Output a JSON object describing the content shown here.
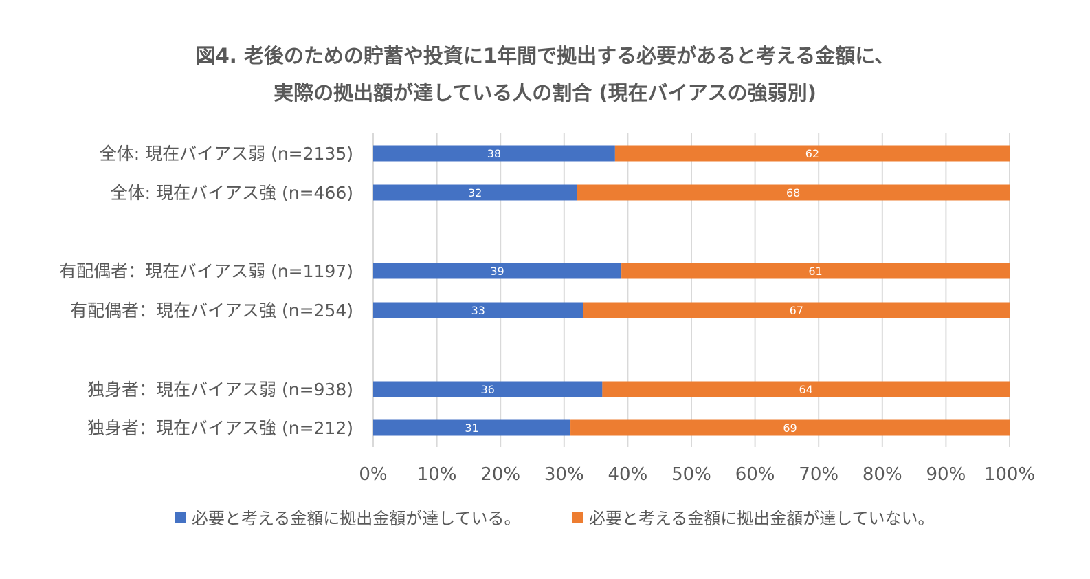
{
  "chart_data": {
    "type": "bar",
    "orientation": "horizontal",
    "stacked": true,
    "title_lines": [
      "図4. 老後のための貯蓄や投資に1年間で拠出する必要があると考える金額に、",
      "実際の拠出額が達している人の割合 (現在バイアスの強弱別)"
    ],
    "categories": [
      "全体: 現在バイアス弱 (n=2135)",
      "全体: 現在バイアス強 (n=466)",
      "有配偶者：現在バイアス弱 (n=1197)",
      "有配偶者：現在バイアス強 (n=254)",
      "独身者：現在バイアス弱 (n=938)",
      "独身者：現在バイアス強 (n=212)"
    ],
    "groups": [
      [
        0,
        1
      ],
      [
        2,
        3
      ],
      [
        4,
        5
      ]
    ],
    "series": [
      {
        "name": "必要と考える金額に拠出金額が達している。",
        "color": "#4472C4",
        "values": [
          38,
          32,
          39,
          33,
          36,
          31
        ]
      },
      {
        "name": "必要と考える金額に拠出金額が達していない。",
        "color": "#ED7D31",
        "values": [
          62,
          68,
          61,
          67,
          64,
          69
        ]
      }
    ],
    "xlim": [
      0,
      100
    ],
    "xticks": [
      "0%",
      "10%",
      "20%",
      "30%",
      "40%",
      "50%",
      "60%",
      "70%",
      "80%",
      "90%",
      "100%"
    ],
    "grid": true,
    "legend_position": "bottom",
    "data_label_color": "#ffffff"
  }
}
